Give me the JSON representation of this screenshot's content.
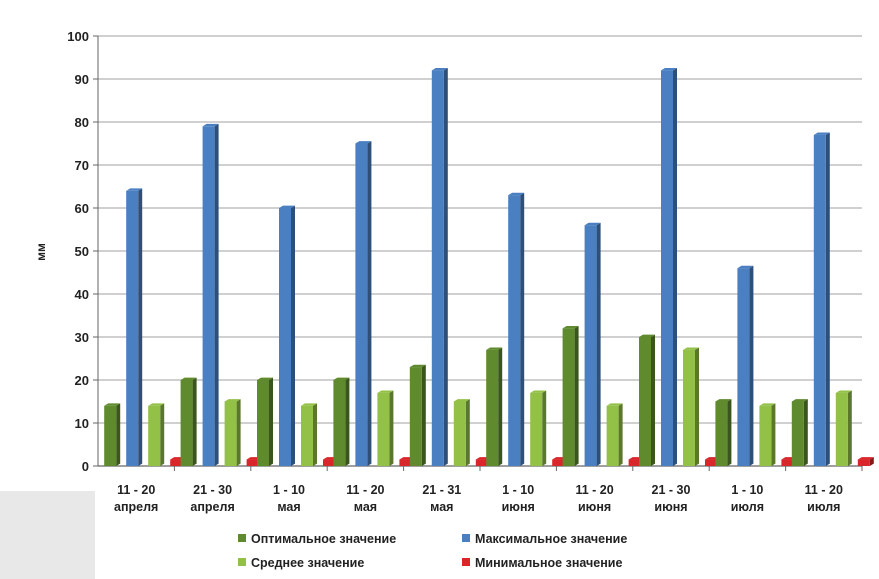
{
  "chart_data": {
    "type": "bar",
    "ylabel": "мм",
    "ylim": [
      0,
      100
    ],
    "yticks": [
      0,
      10,
      20,
      30,
      40,
      50,
      60,
      70,
      80,
      90,
      100
    ],
    "categories": [
      [
        "11 - 20",
        "апреля"
      ],
      [
        "21 - 30",
        "апреля"
      ],
      [
        "1  -  10",
        "мая"
      ],
      [
        "11  -  20",
        "мая"
      ],
      [
        "21 - 31",
        "мая"
      ],
      [
        "1 - 10",
        "июня"
      ],
      [
        "11 - 20",
        "июня"
      ],
      [
        "21 - 30",
        "июня"
      ],
      [
        "1 - 10",
        "июля"
      ],
      [
        "11 - 20",
        "июля"
      ]
    ],
    "series": [
      {
        "name": "Оптимальное значение",
        "color": "#5f8a2e",
        "values": [
          14,
          20,
          20,
          20,
          23,
          27,
          32,
          30,
          15,
          15
        ]
      },
      {
        "name": "Максимальное значение",
        "color": "#4a7fc1",
        "values": [
          64,
          79,
          60,
          75,
          92,
          63,
          56,
          92,
          46,
          77
        ]
      },
      {
        "name": "Среднее значение",
        "color": "#93c047",
        "values": [
          14,
          15,
          14,
          17,
          15,
          17,
          14,
          27,
          14,
          17
        ]
      },
      {
        "name": "Минимальное значение",
        "color": "#d9262a",
        "values": [
          1.5,
          1.5,
          1.5,
          1.5,
          1.5,
          1.5,
          1.5,
          1.5,
          1.5,
          1.5
        ]
      }
    ],
    "legend_position": "bottom",
    "grid": true
  }
}
